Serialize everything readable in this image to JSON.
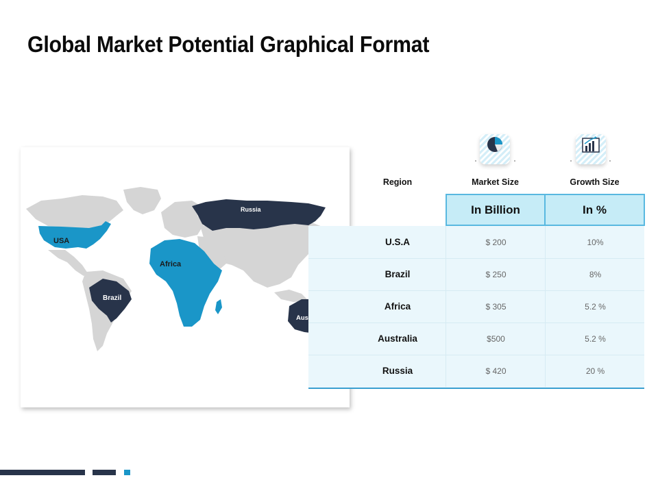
{
  "slide": {
    "title": "Global Market Potential Graphical Format"
  },
  "table": {
    "headers": {
      "region": "Region",
      "market_size": "Market Size",
      "growth_size": "Growth Size"
    },
    "units": {
      "market_size": "In Billion",
      "growth_size": "In %"
    },
    "rows": [
      {
        "region": "U.S.A",
        "market_size": "$ 200",
        "growth_size": "10%"
      },
      {
        "region": "Brazil",
        "market_size": "$ 250",
        "growth_size": "8%"
      },
      {
        "region": "Africa",
        "market_size": "$ 305",
        "growth_size": "5.2 %"
      },
      {
        "region": "Australia",
        "market_size": "$500",
        "growth_size": "5.2 %"
      },
      {
        "region": "Russia",
        "market_size": "$ 420",
        "growth_size": "20 %"
      }
    ]
  },
  "icons": {
    "market_size": "pie-chart-icon",
    "growth_size": "bar-chart-growth-icon"
  },
  "map": {
    "labels": {
      "usa": "USA",
      "brazil": "Brazil",
      "africa": "Africa",
      "russia": "Russia",
      "australia": "Australi"
    }
  },
  "colors": {
    "highlight_blue": "#1a96c8",
    "highlight_dark": "#28344a",
    "land_grey": "#d5d5d5",
    "table_bg": "#eaf7fc",
    "units_bg": "#c6ecf7"
  }
}
